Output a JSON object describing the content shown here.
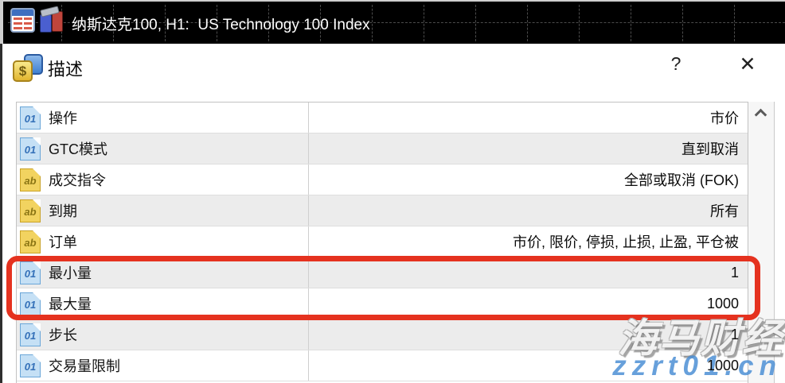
{
  "chart": {
    "title": "纳斯达克100, H1:  US Technology 100 Index"
  },
  "dialog": {
    "title": "描述",
    "help_label": "?",
    "close_label": "✕"
  },
  "spec_table": {
    "rows": [
      {
        "icon": "01",
        "label": "操作",
        "value": "市价"
      },
      {
        "icon": "01",
        "label": "GTC模式",
        "value": "直到取消"
      },
      {
        "icon": "ab",
        "label": "成交指令",
        "value": "全部或取消 (FOK)"
      },
      {
        "icon": "ab",
        "label": "到期",
        "value": "所有"
      },
      {
        "icon": "ab",
        "label": "订单",
        "value": "市价, 限价, 停损, 止损, 止盈, 平仓被"
      },
      {
        "icon": "01",
        "label": "最小量",
        "value": "1"
      },
      {
        "icon": "01",
        "label": "最大量",
        "value": "1000"
      },
      {
        "icon": "01",
        "label": "步长",
        "value": "1"
      },
      {
        "icon": "01",
        "label": "交易量限制",
        "value": "1000"
      }
    ],
    "highlighted_rows": [
      "最小量",
      "最大量"
    ]
  },
  "icon_glyphs": {
    "number_type": "01",
    "text_type": "ab",
    "header_dollar": "$"
  },
  "watermark": {
    "brand": "海马财经",
    "site": "zzrt01.cn"
  },
  "colors": {
    "annotation_red": "#e5321f",
    "row_alt_gray": "#ececec",
    "num_icon_blue": "#c5e0f5",
    "text_icon_yellow": "#f2d360",
    "watermark_blue": "#468bd3",
    "chart_bg": "#000000"
  }
}
